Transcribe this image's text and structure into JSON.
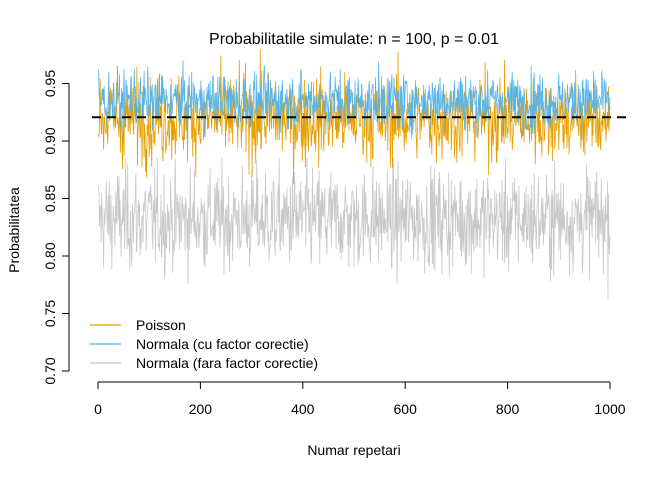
{
  "chart_data": {
    "type": "line",
    "title": "Probabilitatile simulate: n = 100, p = 0.01",
    "xlabel": "Numar repetari",
    "ylabel": "Probabilitatea",
    "xlim": [
      0,
      1000
    ],
    "ylim": [
      0.7,
      0.96
    ],
    "x_ticks": [
      0,
      200,
      400,
      600,
      800,
      1000
    ],
    "y_ticks": [
      "0.70",
      "0.75",
      "0.80",
      "0.85",
      "0.90",
      "0.95"
    ],
    "reference_line": {
      "y": 0.9206,
      "style": "dashed",
      "color": "#000000"
    },
    "grid": false,
    "legend_position": "bottom-left",
    "n_points": 1000,
    "series": [
      {
        "name": "Poisson",
        "color": "#E69F00",
        "mean": 0.92,
        "sd": 0.019,
        "min": 0.86,
        "max": 0.98
      },
      {
        "name": "Normala (cu factor corectie)",
        "color": "#56B4E9",
        "mean": 0.935,
        "sd": 0.012,
        "min": 0.89,
        "max": 0.97
      },
      {
        "name": "Normala (fara factor corectie)",
        "color": "#C8C8C8",
        "mean": 0.832,
        "sd": 0.022,
        "min": 0.725,
        "max": 0.885
      }
    ]
  }
}
